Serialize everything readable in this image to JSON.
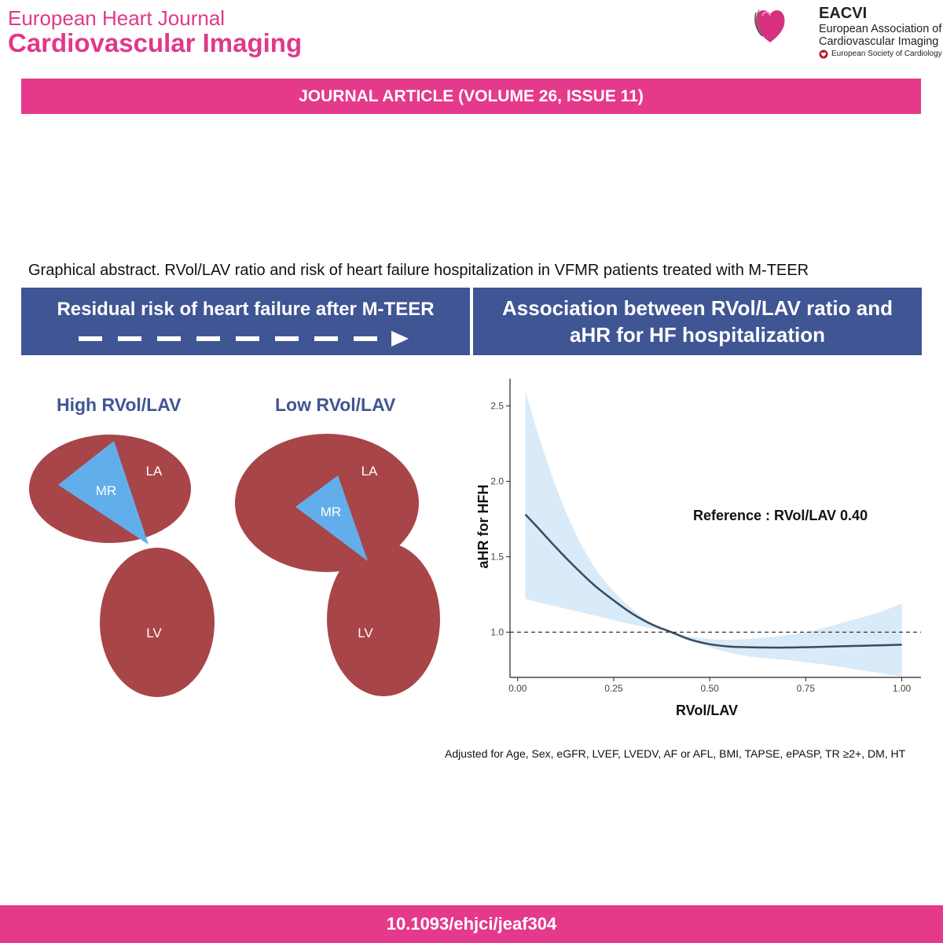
{
  "header": {
    "journal_line1": "European Heart Journal",
    "journal_line2": "Cardiovascular Imaging",
    "org_abbr": "EACVI",
    "org_full_line1": "European Association of",
    "org_full_line2": "Cardiovascular Imaging",
    "society_name": "European Society of Cardiology"
  },
  "banner": {
    "text": "JOURNAL ARTICLE (VOLUME 26, ISSUE 11)"
  },
  "caption": "Graphical abstract. RVol/LAV ratio and risk of heart failure hospitalization in VFMR patients treated with M-TEER",
  "left_panel": {
    "title": "Residual risk of heart failure after M-TEER"
  },
  "right_panel": {
    "title_line1": "Association between RVol/LAV ratio and",
    "title_line2": "aHR for HF hospitalization"
  },
  "diagrams": {
    "high": {
      "title": "High RVol/LAV",
      "la": "LA",
      "mr": "MR",
      "lv": "LV"
    },
    "low": {
      "title": "Low RVol/LAV",
      "la": "LA",
      "mr": "MR",
      "lv": "LV"
    }
  },
  "colors": {
    "accent_pink": "#e5398b",
    "panel_blue": "#405594",
    "chamber_red": "#a84548",
    "mr_blue": "#62aeea",
    "ci_fill": "#d9eaf8",
    "curve": "#3a4a5c"
  },
  "chart_data": {
    "type": "line",
    "title": "",
    "xlabel": "RVol/LAV",
    "ylabel": "aHR for HFH",
    "xlim": [
      -0.02,
      1.05
    ],
    "ylim": [
      0.7,
      2.68
    ],
    "xticks": [
      0.0,
      0.25,
      0.5,
      0.75,
      1.0
    ],
    "xtick_labels": [
      "0.00",
      "0.25",
      "0.50",
      "0.75",
      "1.00"
    ],
    "yticks": [
      1.0,
      1.5,
      2.0,
      2.5
    ],
    "ytick_labels": [
      "1.0",
      "1.5",
      "2.0",
      "2.5"
    ],
    "reference_line": 1.0,
    "annotation": "Reference : RVol/LAV 0.40",
    "grid": false,
    "x": [
      0.02,
      0.05,
      0.1,
      0.15,
      0.2,
      0.25,
      0.3,
      0.35,
      0.4,
      0.45,
      0.5,
      0.55,
      0.6,
      0.65,
      0.7,
      0.75,
      0.8,
      0.85,
      0.9,
      0.95,
      1.0
    ],
    "series": [
      {
        "name": "aHR",
        "values": [
          1.78,
          1.7,
          1.56,
          1.43,
          1.31,
          1.21,
          1.12,
          1.05,
          1.0,
          0.95,
          0.92,
          0.905,
          0.9,
          0.898,
          0.898,
          0.9,
          0.903,
          0.907,
          0.91,
          0.913,
          0.917
        ]
      },
      {
        "name": "lower_95CI",
        "values": [
          1.22,
          1.2,
          1.17,
          1.14,
          1.11,
          1.08,
          1.05,
          1.025,
          1.0,
          0.95,
          0.9,
          0.865,
          0.84,
          0.825,
          0.815,
          0.8,
          0.785,
          0.765,
          0.745,
          0.725,
          0.705
        ]
      },
      {
        "name": "upper_95CI",
        "values": [
          2.6,
          2.34,
          1.96,
          1.66,
          1.43,
          1.27,
          1.15,
          1.06,
          1.0,
          0.97,
          0.955,
          0.95,
          0.955,
          0.965,
          0.98,
          1.0,
          1.03,
          1.065,
          1.1,
          1.14,
          1.19
        ]
      }
    ]
  },
  "footnote": "Adjusted for Age, Sex, eGFR, LVEF, LVEDV, AF or AFL, BMI, TAPSE, ePASP, TR ≥2+, DM, HT",
  "doi": "10.1093/ehjci/jeaf304"
}
